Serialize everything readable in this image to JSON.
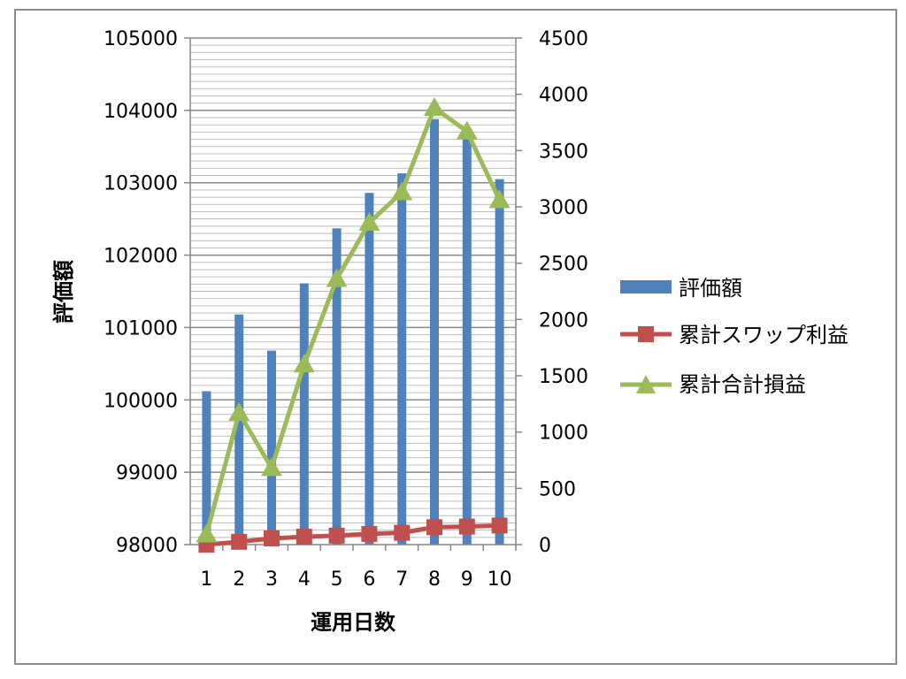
{
  "chart_data": {
    "type": "bar",
    "categories": [
      "1",
      "2",
      "3",
      "4",
      "5",
      "6",
      "7",
      "8",
      "9",
      "10"
    ],
    "xlabel": "運用日数",
    "ylabel": "評価額",
    "ylim": [
      98000,
      105000
    ],
    "ylim_secondary": [
      0,
      4500
    ],
    "y_ticks": [
      "98000",
      "99000",
      "100000",
      "101000",
      "102000",
      "103000",
      "104000",
      "105000"
    ],
    "y2_ticks": [
      "0",
      "500",
      "1000",
      "1500",
      "2000",
      "2500",
      "3000",
      "3500",
      "4000",
      "4500"
    ],
    "grid": true,
    "legend_position": "right",
    "series": [
      {
        "name": "評価額",
        "kind": "bar",
        "axis": "left",
        "color": "#4f81bd",
        "values": [
          100120,
          101180,
          100680,
          101610,
          102370,
          102860,
          103130,
          103880,
          103640,
          103050
        ]
      },
      {
        "name": "累計スワップ利益",
        "kind": "line",
        "marker": "square",
        "axis": "right",
        "color": "#c0504d",
        "values": [
          0,
          25,
          55,
          70,
          80,
          95,
          105,
          155,
          160,
          170
        ]
      },
      {
        "name": "累計合計損益",
        "kind": "line",
        "marker": "triangle",
        "axis": "right",
        "color": "#9bbb59",
        "values": [
          90,
          1170,
          680,
          1600,
          2360,
          2860,
          3130,
          3880,
          3670,
          3060
        ]
      }
    ]
  }
}
